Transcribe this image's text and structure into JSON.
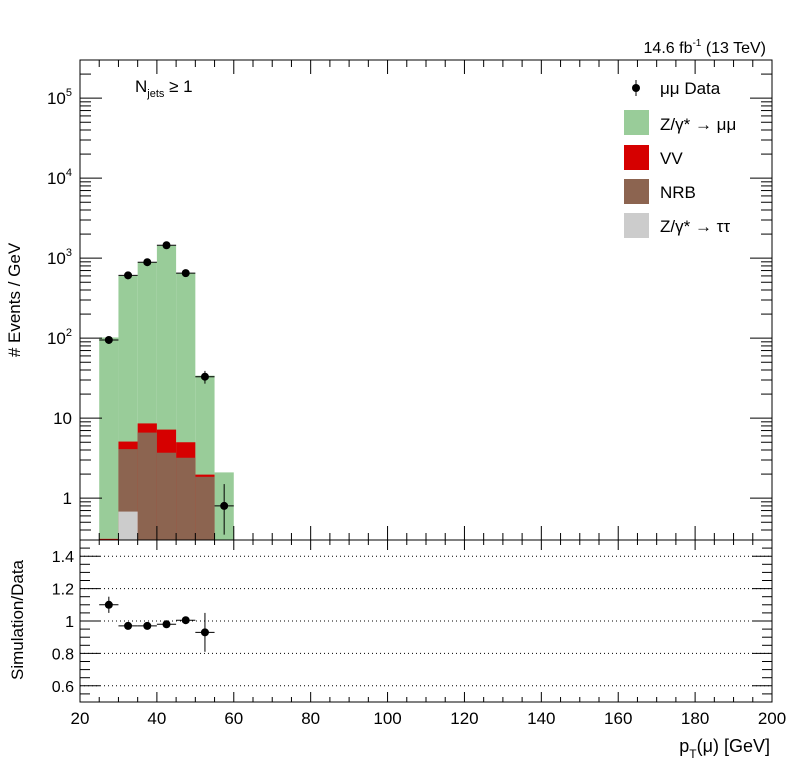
{
  "chart_data": [
    {
      "type": "bar",
      "stacked": true,
      "y_scale": "log",
      "ylim": [
        0.3,
        300000
      ],
      "xlim": [
        20,
        200
      ],
      "ylabel": "# Events / GeV",
      "y_tick_labels": [
        "1",
        "10",
        "10^2",
        "10^3",
        "10^4",
        "10^5"
      ],
      "bin_edges": [
        25,
        30,
        35,
        40,
        45,
        50,
        55,
        60
      ],
      "series": [
        {
          "name": "Z/γ* → ττ",
          "color": "#cccccc",
          "values": [
            0.3,
            0.68,
            0.3,
            0.3,
            0.3,
            0.3,
            0.3
          ]
        },
        {
          "name": "NRB",
          "color": "#8c6450",
          "values": [
            0.3,
            4.1,
            6.6,
            3.7,
            3.2,
            1.85,
            0.3
          ]
        },
        {
          "name": "VV",
          "color": "#d60000",
          "values": [
            0.31,
            5.1,
            8.6,
            7.2,
            5.0,
            1.97,
            0.3
          ]
        },
        {
          "name": "Z/γ* → μμ",
          "color": "#99cc99",
          "values": [
            102,
            600,
            880,
            1430,
            650,
            34,
            2.1
          ]
        }
      ],
      "data_points": {
        "name": "μμ Data",
        "x": [
          27.5,
          32.5,
          37.5,
          42.5,
          47.5,
          52.5,
          57.5
        ],
        "y": [
          95,
          610,
          890,
          1450,
          650,
          33,
          0.8
        ],
        "y_err_low": [
          10,
          25,
          30,
          38,
          25,
          6,
          0.45
        ],
        "y_err_high": [
          10,
          25,
          30,
          38,
          25,
          6,
          0.7
        ],
        "x_err": [
          2.5,
          2.5,
          2.5,
          2.5,
          2.5,
          2.5,
          2.5
        ]
      },
      "annotation": {
        "base": "N",
        "sub": "jets",
        "rest": " ≥ 1"
      },
      "lumi_label": {
        "value": "14.6 fb",
        "sup": "-1",
        "rest": " (13 TeV)"
      },
      "legend_placement": "top-right"
    },
    {
      "type": "scatter",
      "ylabel": "Simulation/Data",
      "xlabel_base": "p",
      "xlabel_sub": "T",
      "xlabel_rest": "(μ) [GeV]",
      "xlim": [
        20,
        200
      ],
      "ylim": [
        0.5,
        1.5
      ],
      "y_ticks": [
        0.6,
        0.8,
        1.0,
        1.2,
        1.4
      ],
      "y_tick_labels": [
        "0.6",
        "0.8",
        "1",
        "1.2",
        "1.4"
      ],
      "x_ticks": [
        20,
        40,
        60,
        80,
        100,
        120,
        140,
        160,
        180,
        200
      ],
      "x_tick_labels": [
        "20",
        "40",
        "60",
        "80",
        "100",
        "120",
        "140",
        "160",
        "180",
        "200"
      ],
      "grid_y": true,
      "points": {
        "x": [
          27.5,
          32.5,
          37.5,
          42.5,
          47.5,
          52.5
        ],
        "y": [
          1.1,
          0.97,
          0.97,
          0.98,
          1.005,
          0.93
        ],
        "y_err": [
          0.05,
          0.015,
          0.015,
          0.013,
          0.02,
          0.12
        ],
        "x_err": [
          2.5,
          2.5,
          2.5,
          2.5,
          2.5,
          2.5
        ]
      }
    }
  ]
}
